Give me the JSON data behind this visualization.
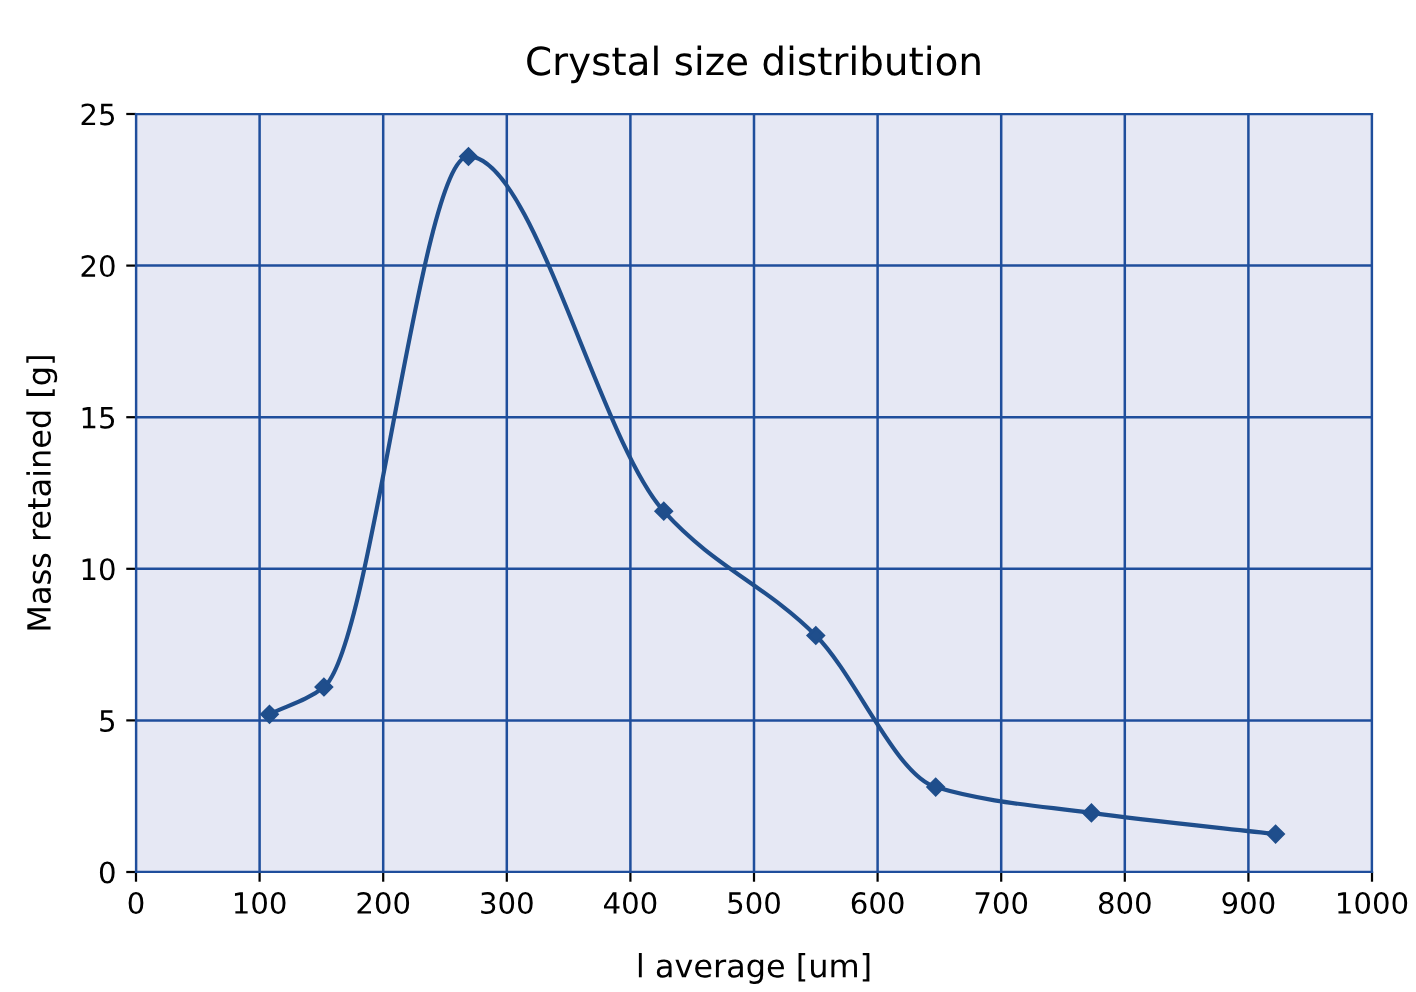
{
  "chart_data": {
    "type": "line",
    "title": "Crystal size distribution",
    "xlabel": "l average [um]",
    "ylabel": "Mass retained [g]",
    "series": [
      {
        "x": [
          108,
          152,
          269,
          427,
          550,
          647,
          773,
          922
        ],
        "values": [
          5.2,
          6.1,
          23.6,
          11.9,
          7.8,
          2.8,
          1.95,
          1.25
        ],
        "color": "#1f4e8c"
      }
    ],
    "xlim": [
      0,
      1000
    ],
    "xticks": [
      0,
      100,
      200,
      300,
      400,
      500,
      600,
      700,
      800,
      900,
      1000
    ],
    "ylim": [
      0,
      25
    ],
    "yticks": [
      0,
      5,
      10,
      15,
      20,
      25
    ],
    "grid": true,
    "marker": "diamond",
    "line_style": "solid",
    "legend": false
  }
}
